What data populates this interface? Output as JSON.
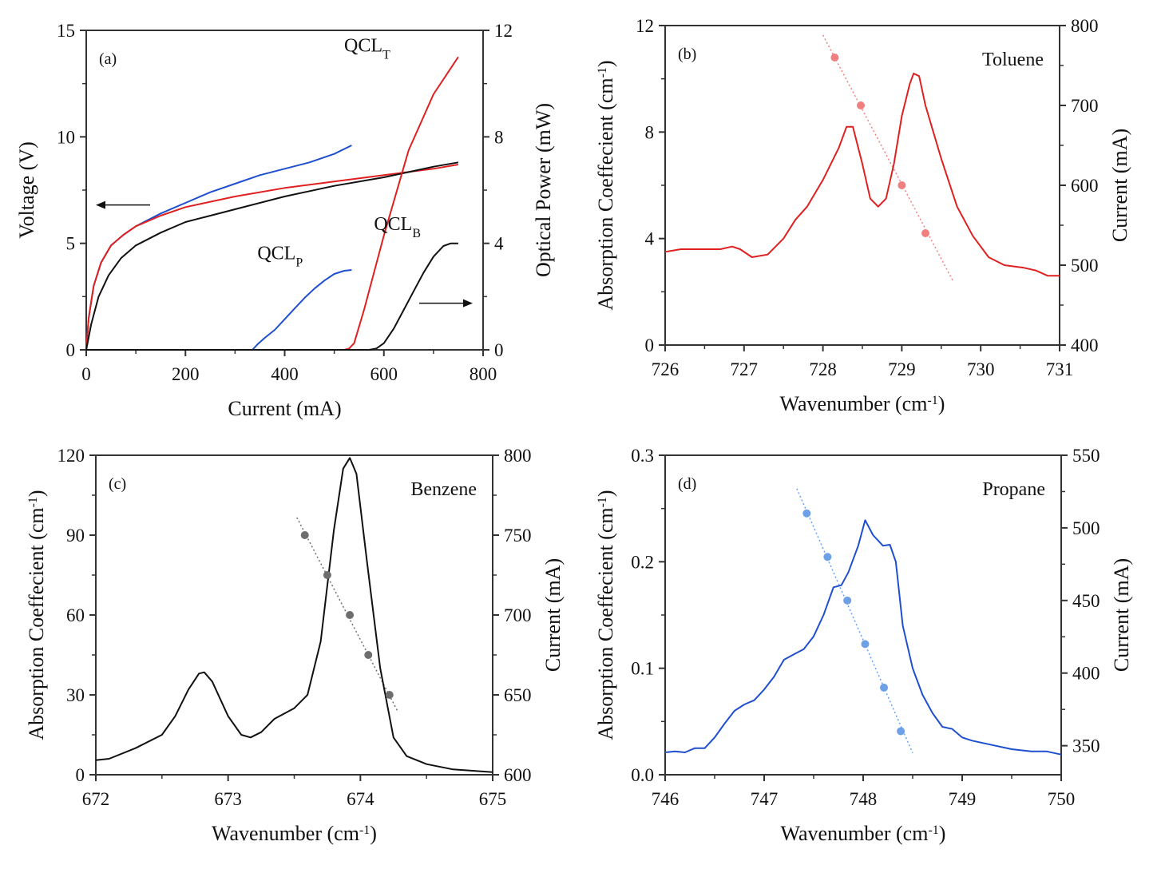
{
  "chart_data": [
    {
      "id": "a",
      "type": "line",
      "panel_label": "(a)",
      "xlabel": "Current (mA)",
      "ylabel_left": "Voltage (V)",
      "ylabel_right": "Optical Power (mW)",
      "xlim": [
        0,
        800
      ],
      "ylim_left": [
        0,
        15
      ],
      "ylim_right": [
        0,
        12
      ],
      "xticks": [
        0,
        200,
        400,
        600,
        800
      ],
      "yticks_left": [
        0,
        5,
        10,
        15
      ],
      "yticks_right": [
        0,
        4,
        8,
        12
      ],
      "annotations": [
        {
          "text": "QCL",
          "sub": "T",
          "x": 520,
          "y_right": 11.2
        },
        {
          "text": "QCL",
          "sub": "P",
          "x": 345,
          "y_right": 3.4
        },
        {
          "text": "QCL",
          "sub": "B",
          "x": 580,
          "y_right": 4.5
        }
      ],
      "arrows": [
        {
          "direction": "left",
          "axis": "left"
        },
        {
          "direction": "right",
          "axis": "right"
        }
      ],
      "series": [
        {
          "name": "QCL_P voltage",
          "axis": "left",
          "color": "#1f4fcf",
          "x": [
            0,
            5,
            15,
            30,
            50,
            75,
            100,
            150,
            200,
            250,
            300,
            350,
            400,
            450,
            500,
            535
          ],
          "y": [
            0,
            1.5,
            3.0,
            4.1,
            4.9,
            5.4,
            5.8,
            6.4,
            6.9,
            7.4,
            7.8,
            8.2,
            8.5,
            8.8,
            9.2,
            9.6
          ]
        },
        {
          "name": "QCL_T voltage",
          "axis": "left",
          "color": "#e02020",
          "x": [
            0,
            5,
            15,
            30,
            50,
            75,
            100,
            150,
            200,
            300,
            400,
            500,
            600,
            700,
            750
          ],
          "y": [
            0,
            1.5,
            3.0,
            4.1,
            4.9,
            5.4,
            5.8,
            6.3,
            6.7,
            7.2,
            7.6,
            7.9,
            8.2,
            8.5,
            8.7
          ]
        },
        {
          "name": "QCL_B voltage",
          "axis": "left",
          "color": "#111111",
          "x": [
            0,
            10,
            25,
            45,
            70,
            100,
            150,
            200,
            300,
            400,
            500,
            600,
            700,
            750
          ],
          "y": [
            0,
            1.2,
            2.5,
            3.5,
            4.3,
            4.9,
            5.5,
            6.0,
            6.6,
            7.2,
            7.7,
            8.1,
            8.6,
            8.8
          ]
        },
        {
          "name": "QCL_P power",
          "axis": "right",
          "color": "#1f4fcf",
          "x": [
            0,
            335,
            345,
            360,
            380,
            400,
            420,
            440,
            460,
            480,
            500,
            520,
            535
          ],
          "y": [
            0,
            0,
            0.2,
            0.45,
            0.75,
            1.15,
            1.55,
            1.95,
            2.3,
            2.6,
            2.85,
            2.97,
            3.0
          ]
        },
        {
          "name": "QCL_T power",
          "axis": "right",
          "color": "#e02020",
          "x": [
            0,
            520,
            530,
            540,
            560,
            600,
            650,
            700,
            750
          ],
          "y": [
            0,
            0,
            0.05,
            0.25,
            1.5,
            4.3,
            7.5,
            9.6,
            11.0
          ]
        },
        {
          "name": "QCL_B power",
          "axis": "right",
          "color": "#111111",
          "x": [
            0,
            570,
            585,
            600,
            620,
            640,
            660,
            680,
            700,
            720,
            735,
            750
          ],
          "y": [
            0,
            0,
            0.05,
            0.25,
            0.8,
            1.5,
            2.2,
            2.9,
            3.5,
            3.9,
            4.0,
            4.0
          ]
        }
      ]
    },
    {
      "id": "b",
      "type": "line",
      "panel_label": "(b)",
      "species": "Toluene",
      "xlabel": "Wavenumber (cm",
      "xlabel_sup": "-1",
      "xlabel_end": ")",
      "ylabel_left": "Absorption Coeffecient (cm",
      "ylabel_sup": "-1",
      "ylabel_end": ")",
      "ylabel_right": "Current (mA)",
      "xlim": [
        726,
        731
      ],
      "ylim_left": [
        0,
        12
      ],
      "ylim_right": [
        400,
        800
      ],
      "xticks": [
        726,
        727,
        728,
        729,
        730,
        731
      ],
      "yticks_left": [
        0,
        4,
        8,
        12
      ],
      "yticks_right": [
        400,
        500,
        600,
        700,
        800
      ],
      "color": "#e02020",
      "point_color": "#f08080",
      "spectrum": {
        "x": [
          726,
          726.2,
          726.5,
          726.7,
          726.85,
          726.95,
          727.1,
          727.3,
          727.5,
          727.65,
          727.8,
          728.0,
          728.2,
          728.3,
          728.38,
          728.5,
          728.6,
          728.7,
          728.8,
          728.9,
          729.0,
          729.1,
          729.15,
          729.22,
          729.3,
          729.5,
          729.7,
          729.9,
          730.1,
          730.3,
          730.55,
          730.7,
          730.85,
          731
        ],
        "y": [
          3.5,
          3.6,
          3.6,
          3.6,
          3.7,
          3.6,
          3.3,
          3.4,
          4.0,
          4.7,
          5.2,
          6.2,
          7.4,
          8.2,
          8.2,
          6.8,
          5.5,
          5.2,
          5.5,
          6.8,
          8.6,
          9.8,
          10.2,
          10.1,
          9.0,
          7.0,
          5.2,
          4.1,
          3.3,
          3.0,
          2.9,
          2.8,
          2.6,
          2.6
        ]
      },
      "points": {
        "x": [
          728.15,
          728.48,
          729.0,
          729.3
        ],
        "current": [
          760,
          700,
          600,
          540
        ]
      },
      "fit_line": {
        "x": [
          728.0,
          729.65
        ],
        "current": [
          788,
          480
        ]
      }
    },
    {
      "id": "c",
      "type": "line",
      "panel_label": "(c)",
      "species": "Benzene",
      "xlabel": "Wavenumber (cm",
      "xlabel_sup": "-1",
      "xlabel_end": ")",
      "ylabel_left": "Absorption Coeffecient (cm",
      "ylabel_sup": "-1",
      "ylabel_end": ")",
      "ylabel_right": "Current (mA)",
      "xlim": [
        672,
        675
      ],
      "ylim_left": [
        0,
        120
      ],
      "ylim_right": [
        600,
        800
      ],
      "xticks": [
        672,
        673,
        674,
        675
      ],
      "yticks_left": [
        0,
        30,
        60,
        90,
        120
      ],
      "yticks_right": [
        600,
        650,
        700,
        750,
        800
      ],
      "color": "#111111",
      "point_color": "#6e6e6e",
      "spectrum": {
        "x": [
          672,
          672.1,
          672.3,
          672.5,
          672.6,
          672.7,
          672.78,
          672.82,
          672.88,
          673.0,
          673.1,
          673.17,
          673.25,
          673.35,
          673.5,
          673.6,
          673.7,
          673.8,
          673.87,
          673.92,
          673.97,
          674.05,
          674.15,
          674.25,
          674.35,
          674.5,
          674.7,
          675
        ],
        "y": [
          5.5,
          6,
          10,
          15,
          22,
          32,
          38,
          38.5,
          35,
          22,
          15,
          14,
          16,
          21,
          25,
          30,
          50,
          92,
          115,
          119,
          113,
          80,
          40,
          14,
          7,
          4,
          2,
          1
        ]
      },
      "points": {
        "x": [
          673.58,
          673.75,
          673.92,
          674.06,
          674.22
        ],
        "current": [
          750,
          725,
          700,
          675,
          650
        ]
      },
      "fit_line": {
        "x": [
          673.52,
          674.28
        ],
        "current": [
          761,
          640
        ]
      }
    },
    {
      "id": "d",
      "type": "line",
      "panel_label": "(d)",
      "species": "Propane",
      "xlabel": "Wavenumber (cm",
      "xlabel_sup": "-1",
      "xlabel_end": ")",
      "ylabel_left": "Absorption Coeffecient (cm",
      "ylabel_sup": "-1",
      "ylabel_end": ")",
      "ylabel_right": "Current (mA)",
      "xlim": [
        746,
        750
      ],
      "ylim_left": [
        0.0,
        0.3
      ],
      "ylim_right": [
        330,
        550
      ],
      "xticks": [
        746,
        747,
        748,
        749,
        750
      ],
      "yticks_left": [
        "0.0",
        "0.1",
        "0.2",
        "0.3"
      ],
      "yticks_right": [
        350,
        400,
        450,
        500,
        550
      ],
      "color": "#1f4fcf",
      "point_color": "#6ea0e8",
      "spectrum": {
        "x": [
          746,
          746.1,
          746.2,
          746.3,
          746.4,
          746.5,
          746.6,
          746.7,
          746.8,
          746.9,
          747.0,
          747.1,
          747.2,
          747.3,
          747.4,
          747.5,
          747.6,
          747.7,
          747.78,
          747.85,
          747.95,
          748.02,
          748.1,
          748.2,
          748.27,
          748.33,
          748.4,
          748.5,
          748.6,
          748.7,
          748.8,
          748.9,
          749.0,
          749.1,
          749.3,
          749.5,
          749.7,
          749.85,
          750
        ],
        "y": [
          0.021,
          0.022,
          0.021,
          0.025,
          0.025,
          0.035,
          0.048,
          0.06,
          0.066,
          0.07,
          0.08,
          0.092,
          0.108,
          0.113,
          0.118,
          0.13,
          0.15,
          0.176,
          0.178,
          0.19,
          0.215,
          0.239,
          0.225,
          0.215,
          0.216,
          0.2,
          0.14,
          0.1,
          0.075,
          0.058,
          0.045,
          0.043,
          0.035,
          0.032,
          0.028,
          0.024,
          0.022,
          0.022,
          0.019
        ]
      },
      "points": {
        "x": [
          747.43,
          747.64,
          747.84,
          748.02,
          748.21,
          748.38
        ],
        "current": [
          510,
          480,
          450,
          420,
          390,
          360
        ]
      },
      "fit_line": {
        "x": [
          747.33,
          748.5
        ],
        "current": [
          527,
          345
        ]
      }
    }
  ]
}
